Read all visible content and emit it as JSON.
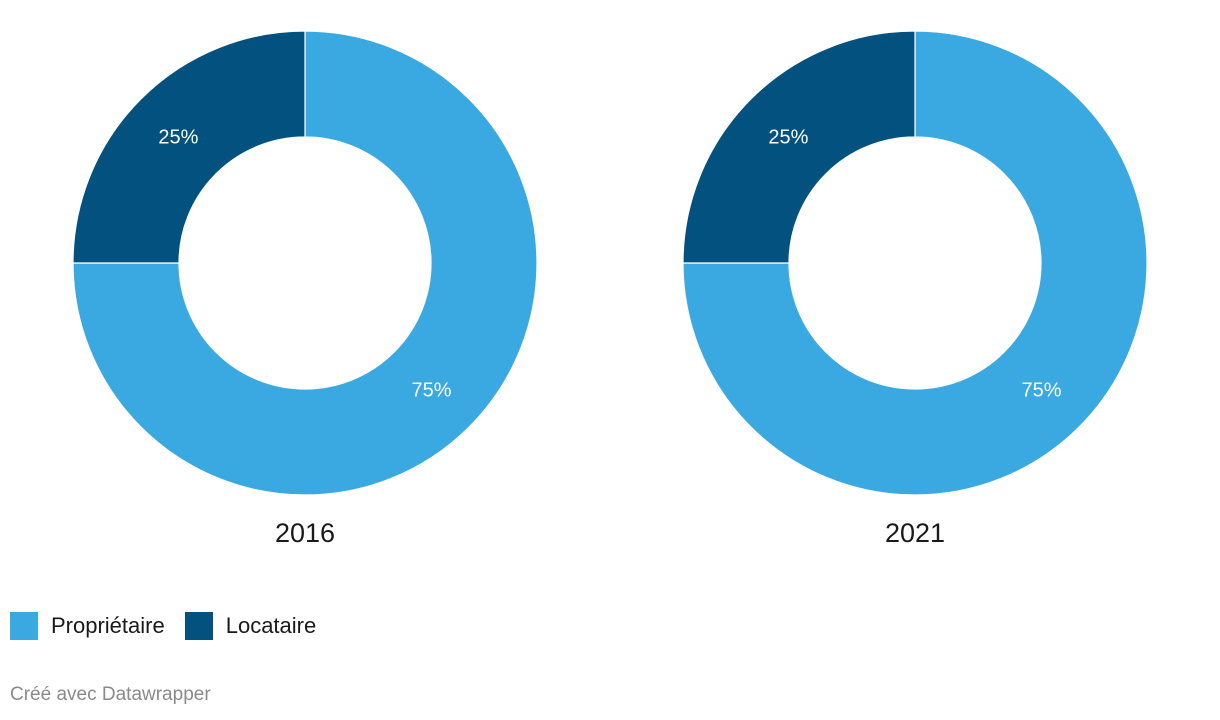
{
  "chart_data": [
    {
      "type": "pie",
      "title": "2016",
      "categories": [
        "Propriétaire",
        "Locataire"
      ],
      "values": [
        75,
        25
      ],
      "value_labels": [
        "75%",
        "25%"
      ],
      "colors": [
        "#3aa9e1",
        "#03517f"
      ],
      "donut": true
    },
    {
      "type": "pie",
      "title": "2021",
      "categories": [
        "Propriétaire",
        "Locataire"
      ],
      "values": [
        75,
        25
      ],
      "value_labels": [
        "75%",
        "25%"
      ],
      "colors": [
        "#3aa9e1",
        "#03517f"
      ],
      "donut": true
    }
  ],
  "legend": {
    "placement": "bottom-left",
    "items": [
      {
        "label": "Propriétaire",
        "color": "#3aa9e1"
      },
      {
        "label": "Locataire",
        "color": "#03517f"
      }
    ]
  },
  "footer": {
    "credit": "Créé avec Datawrapper"
  }
}
